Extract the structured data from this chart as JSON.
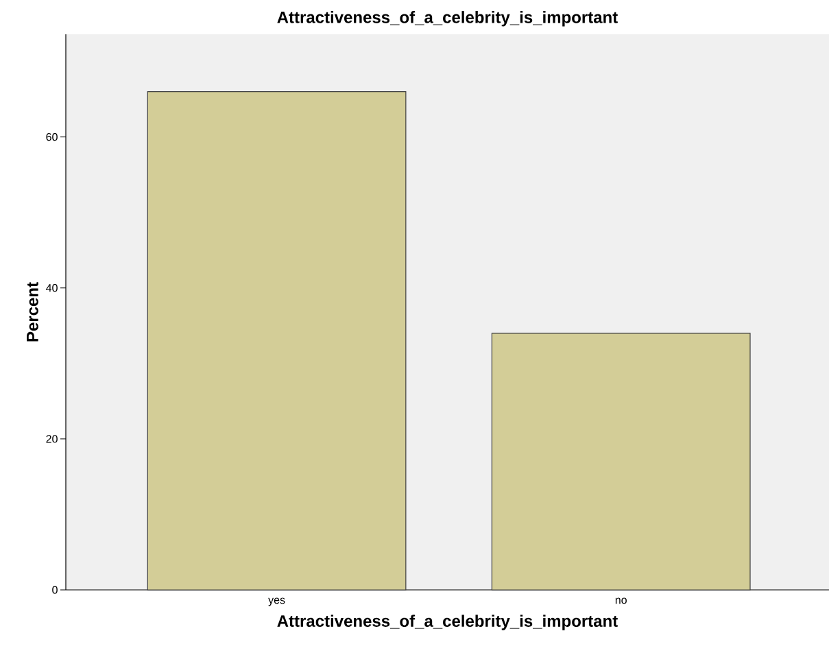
{
  "chart_data": {
    "type": "bar",
    "title": "Attractiveness_of_a_celebrity_is_important",
    "xlabel": "Attractiveness_of_a_celebrity_is_important",
    "ylabel": "Percent",
    "categories": [
      "yes",
      "no"
    ],
    "values": [
      66,
      34
    ],
    "color": "#d3cd97",
    "ylim": [
      0,
      73.6
    ],
    "yticks": [
      0,
      20,
      40,
      60
    ],
    "grid": false
  }
}
